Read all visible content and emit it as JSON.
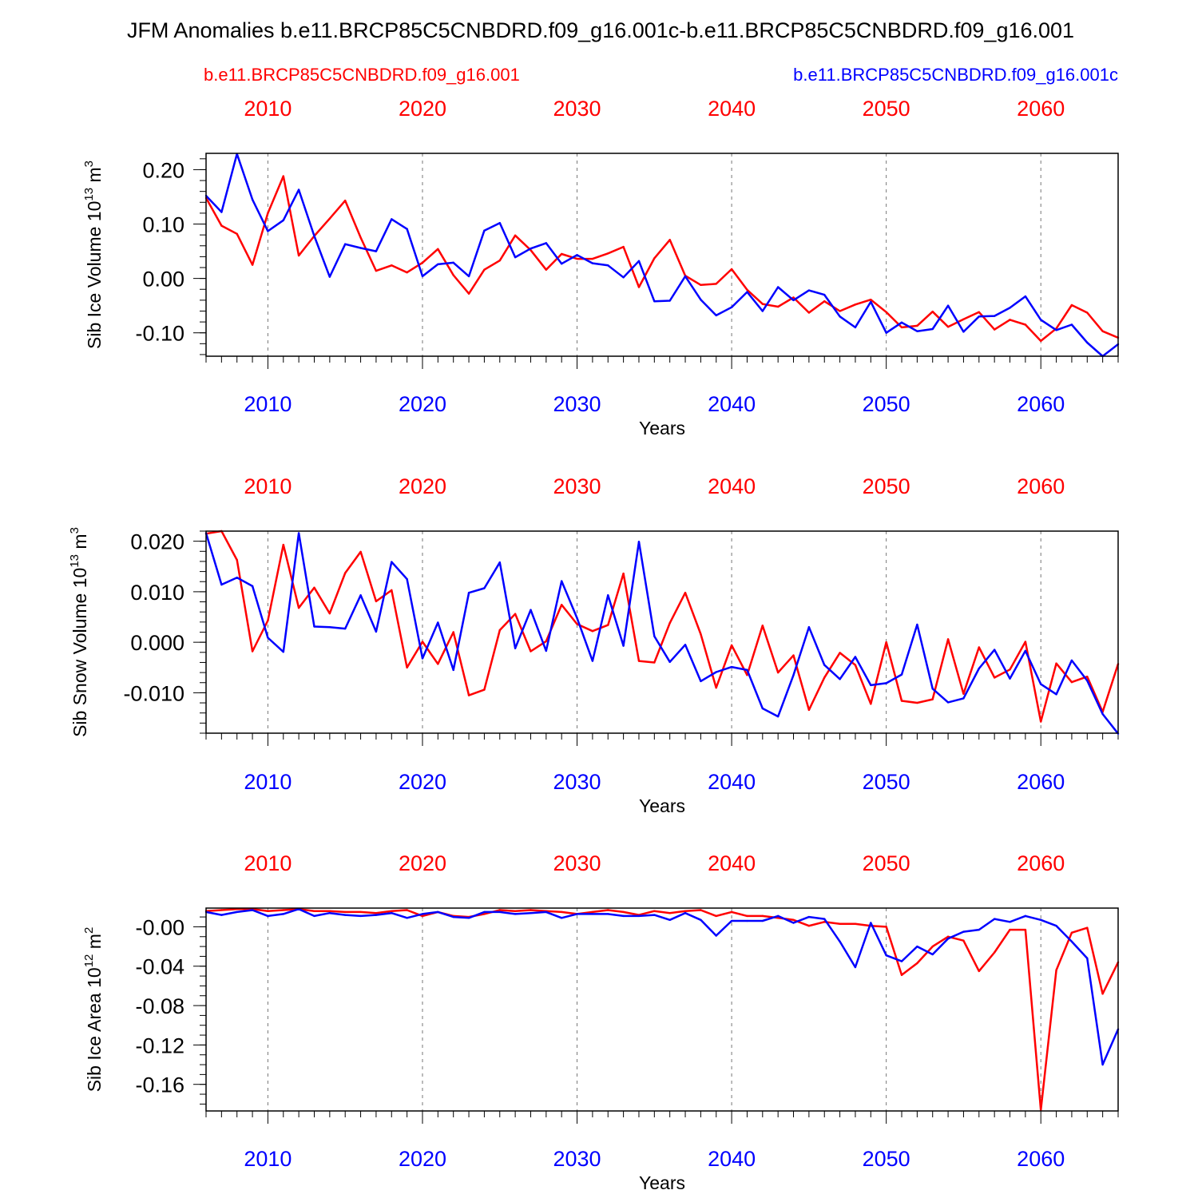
{
  "title": "JFM Anomalies b.e11.BRCP85C5CNBDRD.f09_g16.001c-b.e11.BRCP85C5CNBDRD.f09_g16.001",
  "colors": {
    "red": "#ff0000",
    "blue": "#0000ff",
    "axis": "#000000",
    "grid": "#777777"
  },
  "legend": {
    "red_label": "b.e11.BRCP85C5CNBDRD.f09_g16.001",
    "blue_label": "b.e11.BRCP85C5CNBDRD.f09_g16.001c"
  },
  "chart_data": [
    {
      "type": "line",
      "ylabel": "Sib Ice Volume 10",
      "ylabel_exp": "13",
      "ylabel_unit": " m",
      "ylabel_unit_exp": "3",
      "xlabel": "Years",
      "xlim": [
        2006,
        2065
      ],
      "ylim": [
        -0.143,
        0.23
      ],
      "yticks": [
        0.2,
        0.1,
        0.0,
        -0.1
      ],
      "ytick_labels": [
        "0.20",
        "0.10",
        "0.00",
        "-0.10"
      ],
      "yminor_step": 0.02,
      "xticks": [
        2010,
        2020,
        2030,
        2040,
        2050,
        2060
      ],
      "xtick_labels": [
        "2010",
        "2020",
        "2030",
        "2040",
        "2050",
        "2060"
      ],
      "x_start": 2006,
      "series": [
        {
          "name": "b.e11.BRCP85C5CNBDRD.f09_g16.001",
          "color": "red",
          "values": [
            0.148,
            0.097,
            0.082,
            0.025,
            0.12,
            0.188,
            0.042,
            0.078,
            0.11,
            0.143,
            0.075,
            0.014,
            0.024,
            0.011,
            0.029,
            0.054,
            0.006,
            -0.028,
            0.016,
            0.033,
            0.079,
            0.052,
            0.016,
            0.045,
            0.036,
            0.036,
            0.046,
            0.058,
            -0.016,
            0.037,
            0.071,
            0.005,
            -0.012,
            -0.01,
            0.017,
            -0.021,
            -0.047,
            -0.052,
            -0.035,
            -0.063,
            -0.042,
            -0.06,
            -0.048,
            -0.039,
            -0.062,
            -0.09,
            -0.087,
            -0.061,
            -0.089,
            -0.075,
            -0.062,
            -0.094,
            -0.076,
            -0.085,
            -0.115,
            -0.092,
            -0.049,
            -0.063,
            -0.097,
            -0.109
          ]
        },
        {
          "name": "b.e11.BRCP85C5CNBDRD.f09_g16.001c",
          "color": "blue",
          "values": [
            0.152,
            0.122,
            0.229,
            0.145,
            0.087,
            0.107,
            0.163,
            0.078,
            0.003,
            0.063,
            0.056,
            0.05,
            0.109,
            0.091,
            0.004,
            0.026,
            0.029,
            0.004,
            0.088,
            0.102,
            0.039,
            0.055,
            0.065,
            0.027,
            0.043,
            0.028,
            0.024,
            0.002,
            0.032,
            -0.042,
            -0.041,
            0.004,
            -0.039,
            -0.068,
            -0.053,
            -0.025,
            -0.06,
            -0.016,
            -0.04,
            -0.022,
            -0.03,
            -0.07,
            -0.09,
            -0.043,
            -0.1,
            -0.081,
            -0.097,
            -0.093,
            -0.05,
            -0.098,
            -0.07,
            -0.069,
            -0.054,
            -0.033,
            -0.076,
            -0.095,
            -0.085,
            -0.118,
            -0.143,
            -0.121
          ]
        }
      ]
    },
    {
      "type": "line",
      "ylabel": "Sib Snow Volume 10",
      "ylabel_exp": "13",
      "ylabel_unit": " m",
      "ylabel_unit_exp": "3",
      "xlabel": "Years",
      "xlim": [
        2006,
        2065
      ],
      "ylim": [
        -0.018,
        0.022
      ],
      "yticks": [
        0.02,
        0.01,
        0.0,
        -0.01
      ],
      "ytick_labels": [
        "0.020",
        "0.010",
        "0.000",
        "-0.010"
      ],
      "yminor_step": 0.002,
      "xticks": [
        2010,
        2020,
        2030,
        2040,
        2050,
        2060
      ],
      "xtick_labels": [
        "2010",
        "2020",
        "2030",
        "2040",
        "2050",
        "2060"
      ],
      "x_start": 2006,
      "series": [
        {
          "name": "b.e11.BRCP85C5CNBDRD.f09_g16.001",
          "color": "red",
          "values": [
            0.0215,
            0.022,
            0.0163,
            -0.0018,
            0.0043,
            0.0193,
            0.0068,
            0.0108,
            0.0057,
            0.0137,
            0.0179,
            0.0081,
            0.0103,
            -0.005,
            0.0001,
            -0.0043,
            0.002,
            -0.0105,
            -0.0094,
            0.0024,
            0.0056,
            -0.0018,
            0.0002,
            0.0074,
            0.0036,
            0.0022,
            0.0034,
            0.0136,
            -0.0037,
            -0.004,
            0.0038,
            0.0098,
            0.0016,
            -0.009,
            -0.0006,
            -0.0065,
            0.0033,
            -0.006,
            -0.0026,
            -0.0134,
            -0.007,
            -0.0021,
            -0.0045,
            -0.0122,
            0.0,
            -0.0116,
            -0.012,
            -0.0113,
            0.0006,
            -0.0102,
            -0.001,
            -0.007,
            -0.0054,
            0.0001,
            -0.0157,
            -0.0042,
            -0.0079,
            -0.0068,
            -0.0138,
            -0.0043
          ]
        },
        {
          "name": "b.e11.BRCP85C5CNBDRD.f09_g16.001c",
          "color": "blue",
          "values": [
            0.0216,
            0.0114,
            0.0128,
            0.0111,
            0.0009,
            -0.0019,
            0.0216,
            0.0031,
            0.003,
            0.0027,
            0.0093,
            0.0021,
            0.0159,
            0.0125,
            -0.0032,
            0.0039,
            -0.0055,
            0.0098,
            0.0107,
            0.0158,
            -0.0012,
            0.0064,
            -0.0017,
            0.0121,
            0.0048,
            -0.0037,
            0.0093,
            -0.0007,
            0.0199,
            0.0012,
            -0.0039,
            -0.0005,
            -0.0077,
            -0.0059,
            -0.0049,
            -0.0055,
            -0.0131,
            -0.0147,
            -0.0065,
            0.003,
            -0.0045,
            -0.0073,
            -0.0029,
            -0.0085,
            -0.0081,
            -0.0064,
            0.0035,
            -0.0092,
            -0.0119,
            -0.0111,
            -0.0052,
            -0.0015,
            -0.0072,
            -0.0017,
            -0.0083,
            -0.0103,
            -0.0036,
            -0.0076,
            -0.0142,
            -0.0181
          ]
        }
      ]
    },
    {
      "type": "line",
      "ylabel": "Sib Ice Area 10",
      "ylabel_exp": "12",
      "ylabel_unit": " m",
      "ylabel_unit_exp": "2",
      "xlabel": "Years",
      "xlim": [
        2006,
        2065
      ],
      "ylim": [
        -0.187,
        0.019
      ],
      "yticks": [
        0.0,
        -0.04,
        -0.08,
        -0.12,
        -0.16
      ],
      "ytick_labels": [
        "-0.00",
        "-0.04",
        "-0.08",
        "-0.12",
        "-0.16"
      ],
      "yminor_step": 0.01,
      "xticks": [
        2010,
        2020,
        2030,
        2040,
        2050,
        2060
      ],
      "xtick_labels": [
        "2010",
        "2020",
        "2030",
        "2040",
        "2050",
        "2060"
      ],
      "x_start": 2006,
      "series": [
        {
          "name": "b.e11.BRCP85C5CNBDRD.f09_g16.001",
          "color": "red",
          "values": [
            0.016,
            0.017,
            0.018,
            0.018,
            0.016,
            0.017,
            0.018,
            0.016,
            0.016,
            0.015,
            0.015,
            0.014,
            0.016,
            0.017,
            0.011,
            0.015,
            0.011,
            0.01,
            0.013,
            0.017,
            0.016,
            0.017,
            0.016,
            0.015,
            0.013,
            0.015,
            0.017,
            0.015,
            0.012,
            0.016,
            0.014,
            0.016,
            0.017,
            0.011,
            0.015,
            0.011,
            0.011,
            0.009,
            0.007,
            0.001,
            0.005,
            0.003,
            0.003,
            0.001,
            0.0,
            -0.049,
            -0.037,
            -0.02,
            -0.01,
            -0.014,
            -0.045,
            -0.026,
            -0.003,
            -0.003,
            -0.186,
            -0.044,
            -0.006,
            -0.001,
            -0.068,
            -0.036
          ]
        },
        {
          "name": "b.e11.BRCP85C5CNBDRD.f09_g16.001c",
          "color": "blue",
          "values": [
            0.015,
            0.012,
            0.015,
            0.017,
            0.011,
            0.013,
            0.018,
            0.011,
            0.014,
            0.012,
            0.011,
            0.012,
            0.014,
            0.009,
            0.013,
            0.015,
            0.01,
            0.009,
            0.015,
            0.015,
            0.013,
            0.014,
            0.015,
            0.009,
            0.013,
            0.013,
            0.013,
            0.011,
            0.011,
            0.012,
            0.007,
            0.014,
            0.007,
            -0.009,
            0.006,
            0.006,
            0.006,
            0.011,
            0.004,
            0.01,
            0.008,
            -0.015,
            -0.041,
            0.004,
            -0.029,
            -0.035,
            -0.02,
            -0.028,
            -0.012,
            -0.005,
            -0.003,
            0.008,
            0.005,
            0.011,
            0.007,
            0.001,
            -0.015,
            -0.032,
            -0.14,
            -0.104
          ]
        }
      ]
    }
  ]
}
